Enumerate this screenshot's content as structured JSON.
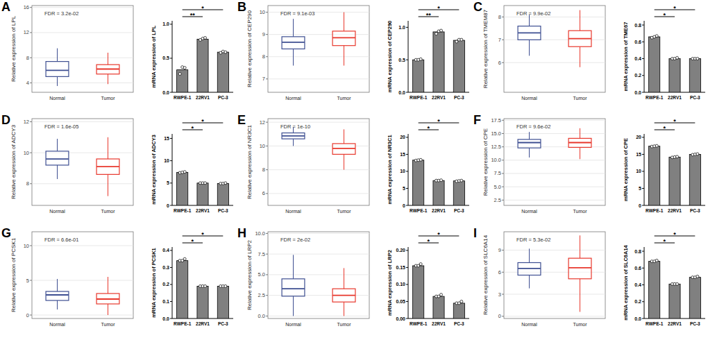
{
  "chart_data": [
    {
      "type": "box",
      "title": "A",
      "y_label": "Relative expression of LPL",
      "annotations": [
        "FDR = 3.2e-02"
      ],
      "categories": [
        "Normal",
        "Tumor"
      ],
      "colors": [
        "#3d4e91",
        "#e8372c"
      ],
      "boxes": [
        {
          "min": 3.5,
          "q1": 5.0,
          "median": 6.0,
          "q3": 7.4,
          "max": 9.5
        },
        {
          "min": 3.8,
          "q1": 5.4,
          "median": 6.2,
          "q3": 6.9,
          "max": 8.8
        }
      ],
      "ylim": [
        2.5,
        16.3
      ],
      "yticks": [
        4,
        8,
        12,
        16
      ],
      "grid": true
    },
    {
      "type": "bar",
      "y_label": "mRNA expression of LPL",
      "categories": [
        "RWPE-1",
        "22RV1",
        "PC-3"
      ],
      "values": [
        0.33,
        0.78,
        0.59
      ],
      "points": [
        [
          0.27,
          0.37,
          0.36
        ],
        [
          0.77,
          0.79,
          0.8
        ],
        [
          0.58,
          0.6,
          0.59
        ]
      ],
      "color": "#808080",
      "annotations": [
        {
          "label": "**",
          "categories": [
            0,
            1
          ]
        },
        {
          "label": "*",
          "categories": [
            0,
            2
          ]
        }
      ],
      "ylim": [
        0,
        1.05
      ],
      "yticks": [
        {
          "value": 0,
          "label": "0.0"
        },
        0.5,
        {
          "value": 1,
          "label": "1.0"
        }
      ],
      "grid": false
    },
    {
      "type": "box",
      "title": "B",
      "y_label": "Relative expression of CEP290",
      "annotations": [
        "FDR = 9.1e-03"
      ],
      "categories": [
        "Normal",
        "Tumor"
      ],
      "colors": [
        "#3d4e91",
        "#e8372c"
      ],
      "boxes": [
        {
          "min": 7.6,
          "q1": 8.35,
          "median": 8.65,
          "q3": 8.9,
          "max": 9.7
        },
        {
          "min": 7.6,
          "q1": 8.5,
          "median": 8.85,
          "q3": 9.15,
          "max": 10.0
        }
      ],
      "ylim": [
        6.4,
        10.3
      ],
      "yticks": [
        7,
        8,
        9,
        10
      ],
      "grid": true
    },
    {
      "type": "bar",
      "y_label": "mRNA expression of CEP290",
      "categories": [
        "RWPE-1",
        "22RV1",
        "PC-3"
      ],
      "values": [
        0.5,
        0.93,
        0.8
      ],
      "points": [
        [
          0.5,
          0.5,
          0.51
        ],
        [
          0.9,
          0.94,
          0.95
        ],
        [
          0.78,
          0.81,
          0.81
        ]
      ],
      "color": "#808080",
      "annotations": [
        {
          "label": "**",
          "categories": [
            0,
            1
          ]
        },
        {
          "label": "*",
          "categories": [
            0,
            2
          ]
        }
      ],
      "ylim": [
        0,
        1.1
      ],
      "yticks": [
        {
          "value": 0,
          "label": "0.0"
        },
        0.5,
        {
          "value": 1,
          "label": "1.0"
        }
      ],
      "grid": false
    },
    {
      "type": "box",
      "title": "C",
      "y_label": "Relative expression of TMEM87",
      "annotations": [
        "FDR = 9.9e-02"
      ],
      "categories": [
        "Normal",
        "Tumor"
      ],
      "colors": [
        "#3d4e91",
        "#e8372c"
      ],
      "boxes": [
        {
          "min": 6.3,
          "q1": 7.0,
          "median": 7.3,
          "q3": 7.6,
          "max": 8.1
        },
        {
          "min": 5.8,
          "q1": 6.7,
          "median": 7.05,
          "q3": 7.4,
          "max": 8.3
        }
      ],
      "ylim": [
        4.7,
        8.5
      ],
      "yticks": [
        6,
        7,
        8
      ],
      "grid": true
    },
    {
      "type": "bar",
      "y_label": "mRNA expression of TME67",
      "categories": [
        "RWPE-1",
        "22RV1",
        "PC-3"
      ],
      "values": [
        0.66,
        0.4,
        0.4
      ],
      "points": [
        [
          0.65,
          0.66,
          0.67
        ],
        [
          0.4,
          0.4,
          0.41
        ],
        [
          0.4,
          0.4,
          0.4
        ]
      ],
      "color": "#808080",
      "annotations": [
        {
          "label": "*",
          "categories": [
            0,
            1
          ]
        },
        {
          "label": "*",
          "categories": [
            0,
            2
          ]
        }
      ],
      "ylim": [
        0,
        0.85
      ],
      "yticks": [
        {
          "value": 0,
          "label": "0.0"
        },
        0.2,
        0.4,
        0.6,
        0.8
      ],
      "grid": false
    },
    {
      "type": "box",
      "title": "D",
      "y_label": "Relative expression of ADCY3",
      "annotations": [
        "FDR = 1.6e-05"
      ],
      "categories": [
        "Normal",
        "Tumor"
      ],
      "colors": [
        "#3d4e91",
        "#e8372c"
      ],
      "boxes": [
        {
          "min": 8.3,
          "q1": 9.2,
          "median": 9.6,
          "q3": 10.1,
          "max": 10.9
        },
        {
          "min": 7.2,
          "q1": 8.6,
          "median": 9.1,
          "q3": 9.6,
          "max": 11.0
        }
      ],
      "ylim": [
        6.6,
        12.2
      ],
      "yticks": [
        8,
        10,
        12
      ],
      "grid": true
    },
    {
      "type": "bar",
      "y_label": "mRNA expression of ADCY3",
      "categories": [
        "RWPE-1",
        "22RV1",
        "PC-3"
      ],
      "values": [
        7.4,
        5.0,
        4.9
      ],
      "points": [
        [
          7.3,
          7.4,
          7.5
        ],
        [
          5.0,
          5.0,
          5.0
        ],
        [
          4.9,
          4.9,
          5.0
        ]
      ],
      "color": "#808080",
      "annotations": [
        {
          "label": "*",
          "categories": [
            0,
            1
          ]
        },
        {
          "label": "*",
          "categories": [
            0,
            2
          ]
        }
      ],
      "ylim": [
        0,
        16
      ],
      "yticks": [
        0,
        5,
        10,
        15
      ],
      "grid": false
    },
    {
      "type": "box",
      "title": "E",
      "y_label": "Relative expression of NR3C1",
      "annotations": [
        "FDR = 1e-10"
      ],
      "categories": [
        "Normal",
        "Tumor"
      ],
      "colors": [
        "#3d4e91",
        "#e8372c"
      ],
      "boxes": [
        {
          "min": 10.0,
          "q1": 10.6,
          "median": 10.85,
          "q3": 11.1,
          "max": 11.6
        },
        {
          "min": 8.0,
          "q1": 9.3,
          "median": 9.8,
          "q3": 10.2,
          "max": 11.4
        }
      ],
      "ylim": [
        5,
        12.3
      ],
      "yticks": [
        6,
        8,
        10,
        12
      ],
      "grid": true
    },
    {
      "type": "bar",
      "y_label": "mRNA expression of NR3C1",
      "categories": [
        "RWPE-1",
        "22RV1",
        "PC-3"
      ],
      "values": [
        13.3,
        7.3,
        7.2
      ],
      "points": [
        [
          13.2,
          13.3,
          13.4
        ],
        [
          7.3,
          7.3,
          7.4
        ],
        [
          7.1,
          7.2,
          7.3
        ]
      ],
      "color": "#808080",
      "annotations": [
        {
          "label": "*",
          "categories": [
            0,
            1
          ]
        },
        {
          "label": "*",
          "categories": [
            0,
            2
          ]
        }
      ],
      "ylim": [
        0,
        21
      ],
      "yticks": [
        0,
        5,
        10,
        15,
        20
      ],
      "grid": false
    },
    {
      "type": "box",
      "title": "F",
      "y_label": "Relative expression of CPE",
      "annotations": [
        "FDR = 9.6e-02"
      ],
      "categories": [
        "Normal",
        "Tumor"
      ],
      "colors": [
        "#3d4e91",
        "#e8372c"
      ],
      "boxes": [
        {
          "min": 10.5,
          "q1": 12.3,
          "median": 13.3,
          "q3": 13.9,
          "max": 15.3
        },
        {
          "min": 10.2,
          "q1": 12.4,
          "median": 13.3,
          "q3": 14.1,
          "max": 16.0
        }
      ],
      "ylim": [
        1.5,
        17.8
      ],
      "yticks": [
        2.5,
        {
          "value": 5,
          "label": "5.0"
        },
        7.5,
        {
          "value": 10,
          "label": "10.0"
        },
        12.5,
        {
          "value": 15,
          "label": "15.0"
        },
        17.5
      ],
      "grid": true
    },
    {
      "type": "bar",
      "y_label": "mRNA expression of CPE",
      "categories": [
        "RWPE-1",
        "22RV1",
        "PC-3"
      ],
      "values": [
        17.4,
        14.2,
        15.0
      ],
      "points": [
        [
          17.3,
          17.4,
          17.5
        ],
        [
          14.1,
          14.2,
          14.3
        ],
        [
          14.9,
          15.0,
          15.1
        ]
      ],
      "color": "#808080",
      "annotations": [
        {
          "label": "*",
          "categories": [
            0,
            1
          ]
        },
        {
          "label": "*",
          "categories": [
            0,
            2
          ]
        }
      ],
      "ylim": [
        0,
        21
      ],
      "yticks": [
        0,
        5,
        10,
        15,
        20
      ],
      "grid": false
    },
    {
      "type": "box",
      "title": "G",
      "y_label": "Relative expression of PCSK1",
      "annotations": [
        "FDR = 6.6e-01"
      ],
      "categories": [
        "Normal",
        "Tumor"
      ],
      "colors": [
        "#3d4e91",
        "#e8372c"
      ],
      "boxes": [
        {
          "min": 0.8,
          "q1": 2.1,
          "median": 2.9,
          "q3": 3.4,
          "max": 5.2
        },
        {
          "min": 0,
          "q1": 1.6,
          "median": 2.3,
          "q3": 3.1,
          "max": 5.5
        }
      ],
      "ylim": [
        -0.5,
        12
      ],
      "yticks": [
        0,
        5,
        10
      ],
      "grid": true
    },
    {
      "type": "bar",
      "y_label": "mRNA expression of PCSK1",
      "categories": [
        "RWPE-1",
        "22RV1",
        "PC-3"
      ],
      "values": [
        0.34,
        0.19,
        0.19
      ],
      "points": [
        [
          0.34,
          0.34,
          0.35
        ],
        [
          0.19,
          0.19,
          0.19
        ],
        [
          0.19,
          0.19,
          0.19
        ]
      ],
      "color": "#808080",
      "annotations": [
        {
          "label": "*",
          "categories": [
            0,
            1
          ]
        },
        {
          "label": "*",
          "categories": [
            0,
            2
          ]
        }
      ],
      "ylim": [
        0,
        0.42
      ],
      "yticks": [
        {
          "value": 0,
          "label": "0.0"
        },
        0.1,
        0.2,
        0.3,
        0.4
      ],
      "grid": false
    },
    {
      "type": "box",
      "title": "H",
      "y_label": "Relative expression of LRP2",
      "annotations": [
        "FDR = 2e-02"
      ],
      "categories": [
        "Normal",
        "Tumor"
      ],
      "colors": [
        "#3d4e91",
        "#e8372c"
      ],
      "boxes": [
        {
          "min": 0,
          "q1": 2.4,
          "median": 3.3,
          "q3": 4.5,
          "max": 7.4
        },
        {
          "min": 0,
          "q1": 1.7,
          "median": 2.5,
          "q3": 3.3,
          "max": 5.8
        }
      ],
      "ylim": [
        -0.3,
        10.2
      ],
      "yticks": [
        {
          "value": 0,
          "label": "0.0"
        },
        2.5,
        {
          "value": 5,
          "label": "5.0"
        },
        7.5,
        {
          "value": 10,
          "label": "10.0"
        }
      ],
      "grid": true
    },
    {
      "type": "bar",
      "y_label": "mRNA expression of LRP2",
      "categories": [
        "RWPE-1",
        "22RV1",
        "PC-3"
      ],
      "values": [
        0.155,
        0.065,
        0.045
      ],
      "points": [
        [
          0.155,
          0.155,
          0.16
        ],
        [
          0.065,
          0.065,
          0.07
        ],
        [
          0.045,
          0.045,
          0.05
        ]
      ],
      "color": "#808080",
      "annotations": [
        {
          "label": "*",
          "categories": [
            0,
            1
          ]
        },
        {
          "label": "*",
          "categories": [
            0,
            2
          ]
        }
      ],
      "ylim": [
        0,
        0.21
      ],
      "yticks": [
        {
          "value": 0,
          "label": "0.00"
        },
        0.05,
        {
          "value": 0.1,
          "label": "0.10"
        },
        0.15,
        {
          "value": 0.2,
          "label": "0.20"
        }
      ],
      "grid": false
    },
    {
      "type": "box",
      "title": "I",
      "y_label": "Relative expression of SLC6A14",
      "annotations": [
        "FDR = 5.3e-02"
      ],
      "categories": [
        "Normal",
        "Tumor"
      ],
      "colors": [
        "#3d4e91",
        "#e8372c"
      ],
      "boxes": [
        {
          "min": 3.8,
          "q1": 5.6,
          "median": 6.5,
          "q3": 7.3,
          "max": 9.2
        },
        {
          "min": 0.6,
          "q1": 5.1,
          "median": 6.6,
          "q3": 7.9,
          "max": 11.0
        }
      ],
      "ylim": [
        -0.3,
        11.5
      ],
      "yticks": [
        0,
        3,
        6,
        9
      ],
      "grid": true
    },
    {
      "type": "bar",
      "y_label": "mRNA expression of SLC6A14",
      "categories": [
        "RWPE-1",
        "22RV1",
        "PC-3"
      ],
      "values": [
        0.68,
        0.41,
        0.49
      ],
      "points": [
        [
          0.68,
          0.68,
          0.69
        ],
        [
          0.41,
          0.41,
          0.41
        ],
        [
          0.49,
          0.49,
          0.5
        ]
      ],
      "color": "#808080",
      "annotations": [
        {
          "label": "*",
          "categories": [
            0,
            1
          ]
        },
        {
          "label": "*",
          "categories": [
            0,
            2
          ]
        }
      ],
      "ylim": [
        0,
        0.85
      ],
      "yticks": [
        {
          "value": 0,
          "label": "0.0"
        },
        0.2,
        0.4,
        0.6,
        0.8
      ],
      "grid": false
    }
  ]
}
